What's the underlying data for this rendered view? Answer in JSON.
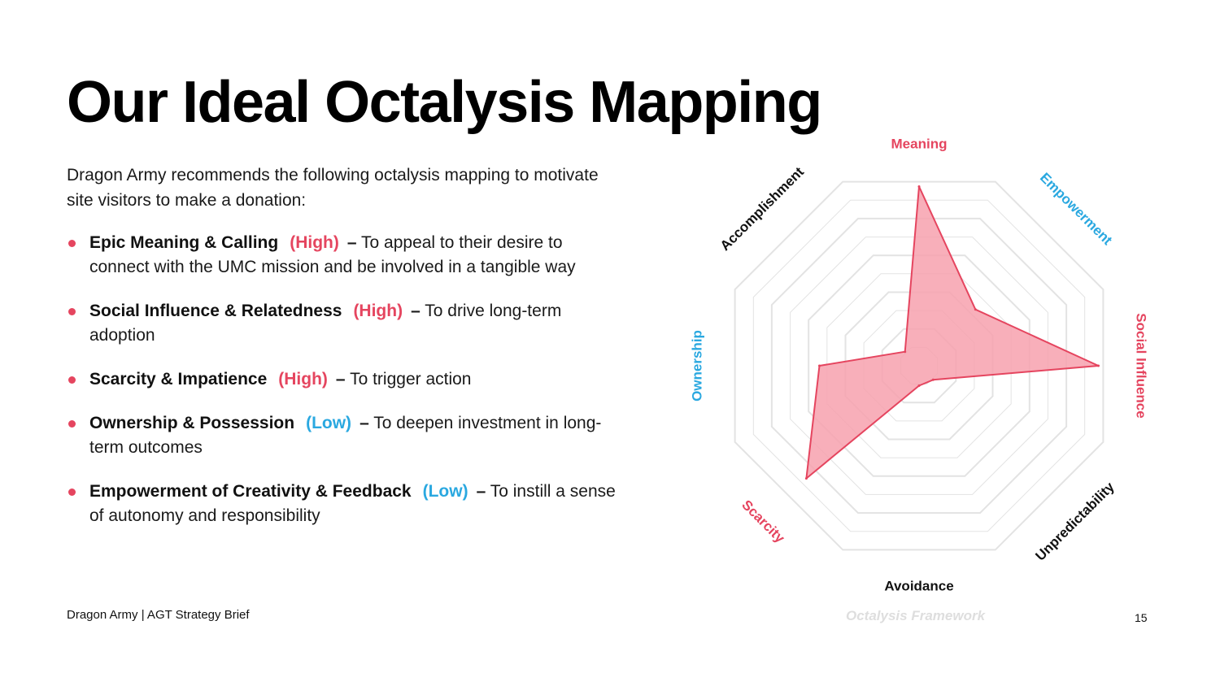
{
  "slide": {
    "title": "Our Ideal Octalysis Mapping",
    "intro": "Dragon Army recommends the following octalysis mapping to motivate site visitors to make a donation:",
    "bullets": [
      {
        "name": "Epic Meaning & Calling",
        "level": "(High)",
        "dash": "–",
        "text": "To appeal to their desire to connect with the UMC mission and be involved in a tangible way"
      },
      {
        "name": "Social Influence & Relatedness",
        "level": "(High)",
        "dash": "–",
        "text": "To drive long-term adoption"
      },
      {
        "name": "Scarcity & Impatience",
        "level": "(High)",
        "dash": "–",
        "text": "To trigger action"
      },
      {
        "name": "Ownership & Possession",
        "level": "(Low)",
        "dash": "–",
        "text": "To deepen investment in long-term outcomes"
      },
      {
        "name": "Empowerment of Creativity & Feedback",
        "level": "(Low)",
        "dash": "–",
        "text": "To instill a sense of autonomy and responsibility"
      }
    ],
    "footer": {
      "left": "Dragon Army | AGT Strategy Brief",
      "center": "Octalysis Framework",
      "page": "15"
    }
  },
  "colors": {
    "high": "#e5455f",
    "low": "#2aa8e0",
    "neutral": "#111111",
    "fill": "#f7a1ae",
    "grid": "#e3e3e3"
  },
  "chart_data": {
    "type": "radar",
    "title": "",
    "axes": [
      "Meaning",
      "Empowerment",
      "Social Influence",
      "Unpredictability",
      "Avoidance",
      "Scarcity",
      "Ownership",
      "Accomplishment"
    ],
    "axis_colors": [
      "#e5455f",
      "#2aa8e0",
      "#e5455f",
      "#111111",
      "#111111",
      "#e5455f",
      "#2aa8e0",
      "#111111"
    ],
    "values": [
      9,
      4,
      9,
      1,
      1,
      8,
      5,
      1
    ],
    "range": [
      0,
      10
    ],
    "rings": 10,
    "grid": true
  }
}
